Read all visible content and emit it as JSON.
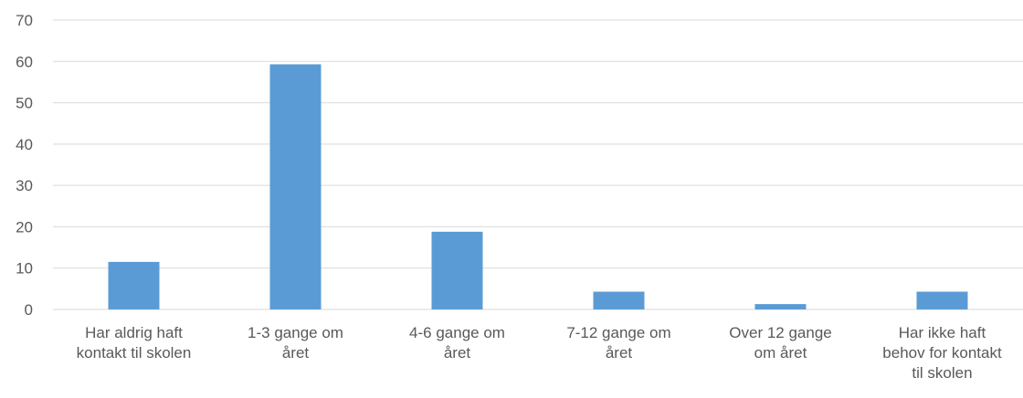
{
  "chart_data": {
    "type": "bar",
    "categories": [
      "Har aldrig haft kontakt til skolen",
      "1-3 gange om året",
      "4-6 gange om året",
      "7-12 gange om året",
      "Over 12 gange om året",
      "Har ikke haft behov for kontakt til skolen"
    ],
    "category_lines": [
      [
        "Har aldrig haft",
        "kontakt til skolen"
      ],
      [
        "1-3 gange om",
        "året"
      ],
      [
        "4-6 gange om",
        "året"
      ],
      [
        "7-12 gange om",
        "året"
      ],
      [
        "Over 12 gange",
        "om året"
      ],
      [
        "Har ikke haft",
        "behov for kontakt",
        "til skolen"
      ]
    ],
    "values": [
      11.5,
      59.3,
      18.8,
      4.3,
      1.3,
      4.3
    ],
    "yticks": [
      0,
      10,
      20,
      30,
      40,
      50,
      60,
      70
    ],
    "ylim": [
      0,
      70
    ],
    "title": "",
    "xlabel": "",
    "ylabel": "",
    "grid": true,
    "legend": "none",
    "colors": {
      "bar": "#5B9BD5",
      "grid": "#D9D9D9",
      "text": "#595959"
    }
  }
}
